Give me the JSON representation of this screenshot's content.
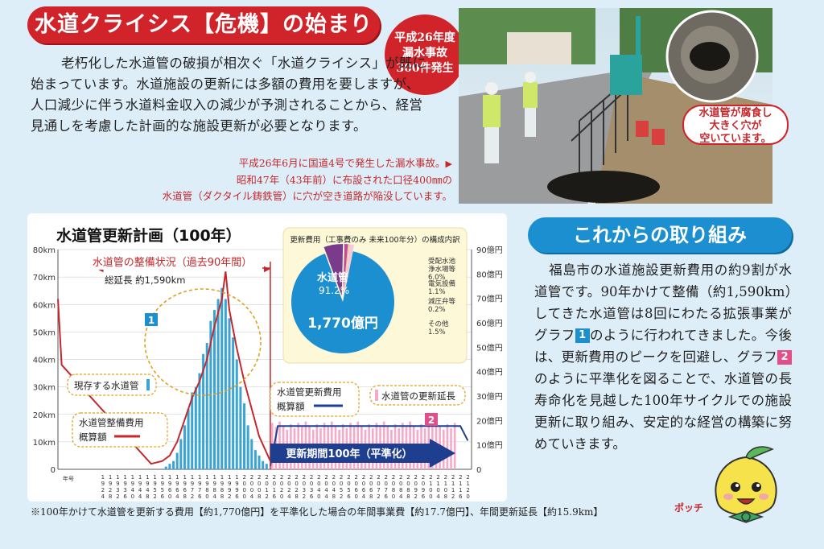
{
  "header": {
    "title": "水道クライシス【危機】の始まり",
    "badge_line1": "平成26年度",
    "badge_line2": "漏水事故",
    "badge_line3": "300件発生"
  },
  "intro": {
    "text": "老朽化した水道管の破損が相次ぐ「水道クライシス」が既に始まっています。水道施設の更新には多額の費用を要しますが、人口減少に伴う水道料金収入の減少が予測されることから、経営見通しを考慮した計画的な施設更新が必要となります。"
  },
  "photo_caption": {
    "line1": "平成26年6月に国道4号で発生した漏水事故。",
    "line2": "昭和47年（43年前）に布設された口径400㎜の",
    "line3": "水道管（ダクタイル鋳鉄管）に穴が空き道路が陥没しています。"
  },
  "photo_callout": {
    "line1": "水道管が腐食し",
    "line2": "大きく穴が",
    "line3": "空いています。"
  },
  "chart_data": {
    "type": "bar",
    "title": "水道管更新計画（100年）",
    "y_left_label_unit": "km",
    "y_left_ticks": [
      "0",
      "10km",
      "20km",
      "30km",
      "40km",
      "50km",
      "60km",
      "70km",
      "80km"
    ],
    "y_right_ticks": [
      "0",
      "10億円",
      "20億円",
      "30億円",
      "40億円",
      "50億円",
      "60億円",
      "70億円",
      "80億円",
      "90億円"
    ],
    "ylim_left": [
      0,
      80
    ],
    "ylim_right": [
      0,
      90
    ],
    "x_first_label": "年号不明",
    "x_start_year": 1900,
    "x_end_year": 2122,
    "annotations": {
      "past_range": "水道管の整備状況（過去90年間）",
      "total_length": "総延長 約1,590km",
      "existing": "現存する水道管",
      "existing_cost": "水道管整備費用",
      "existing_cost2": "概算額",
      "renewal_cost": "水道管更新費用",
      "renewal_cost2": "概算額",
      "renewal_length": "水道管の更新延長",
      "period": "更新期間100年（平準化）",
      "marker1": "1",
      "marker2": "2"
    },
    "series": [
      {
        "name": "現存する水道管",
        "type": "bar",
        "color": "#3aa5d4",
        "years": [
          1958,
          1960,
          1962,
          1964,
          1966,
          1968,
          1970,
          1972,
          1974,
          1976,
          1978,
          1980,
          1982,
          1984,
          1986,
          1988,
          1990,
          1992,
          1994,
          1996,
          1998,
          2000,
          2002,
          2004,
          2006,
          2008,
          2010,
          2012
        ],
        "values": [
          1,
          2,
          3,
          6,
          11,
          16,
          22,
          28,
          30,
          35,
          42,
          46,
          54,
          58,
          62,
          66,
          62,
          55,
          48,
          40,
          30,
          24,
          16,
          11,
          7,
          5,
          3,
          2
        ]
      },
      {
        "name": "水道管整備費用 概算額",
        "type": "line",
        "color": "#c4282c",
        "years": [
          1900,
          1902,
          1950,
          1956,
          1960,
          1964,
          1968,
          1972,
          1976,
          1980,
          1984,
          1988,
          1990,
          1992,
          1996,
          2000,
          2004,
          2008,
          2012,
          2014
        ],
        "values": [
          62,
          38,
          2,
          3,
          5,
          10,
          18,
          26,
          32,
          40,
          52,
          62,
          72,
          58,
          44,
          32,
          22,
          12,
          6,
          3
        ]
      },
      {
        "name": "水道管の更新延長",
        "type": "bar",
        "color": "#f4aac8",
        "values_km": 15.9,
        "range": [
          2015,
          2114
        ]
      },
      {
        "name": "水道管更新費用 概算額",
        "type": "line",
        "color": "#1e3f8f",
        "value_oku": 17.7
      }
    ]
  },
  "pie": {
    "title": "更新費用（工事費のみ 未来100年分）の構成内訳",
    "total": "1,770億円",
    "main_label": "水道管",
    "main_value": "91.2%",
    "slices": [
      {
        "label": "水道管",
        "value": 91.2,
        "color": "#1c8fd0"
      },
      {
        "label": "受配水池 浄水場等",
        "value": 6.0,
        "color": "#7b3b8c"
      },
      {
        "label": "電気設備",
        "value": 1.1,
        "color": "#c14aa0"
      },
      {
        "label": "減圧弁等",
        "value": 0.2,
        "color": "#e39a3c"
      },
      {
        "label": "その他",
        "value": 1.5,
        "color": "#f1c9d8"
      }
    ],
    "legend": [
      {
        "l1": "受配水池",
        "l2": "浄水場等",
        "l3": "6.0%"
      },
      {
        "l1": "電気設備",
        "l2": "1.1%"
      },
      {
        "l1": "減圧弁等",
        "l2": "0.2%"
      },
      {
        "l1": "その他",
        "l2": "1.5%"
      }
    ]
  },
  "footnote": "※100年かけて水道管を更新する費用【約1,770億円】を平準化した場合の年間事業費【約17.7億円】、年間更新延長【約15.9km】",
  "section2": {
    "title": "これからの取り組み",
    "p1": "福島市の水道施設更新費用の約9割が水道管です。90年かけて整備（約1,590km）してきた水道管は8回にわたる拡張事業がグラフ",
    "n1": "1",
    "p2": "のように行われてきました。今後は、更新費用のピークを回避し、グラフ",
    "n2": "2",
    "p3": "のように平準化を図ることで、水道管の長寿命化を見越した100年サイクルでの施設更新に取り組み、安定的な経営の構築に努めていきます。"
  },
  "mascot": {
    "name": "ポッチ"
  },
  "colors": {
    "red": "#d0242a",
    "blue": "#1c8fd0",
    "navy": "#1e3f8f",
    "pink": "#f4aac8",
    "cyan": "#3aa5d4"
  }
}
